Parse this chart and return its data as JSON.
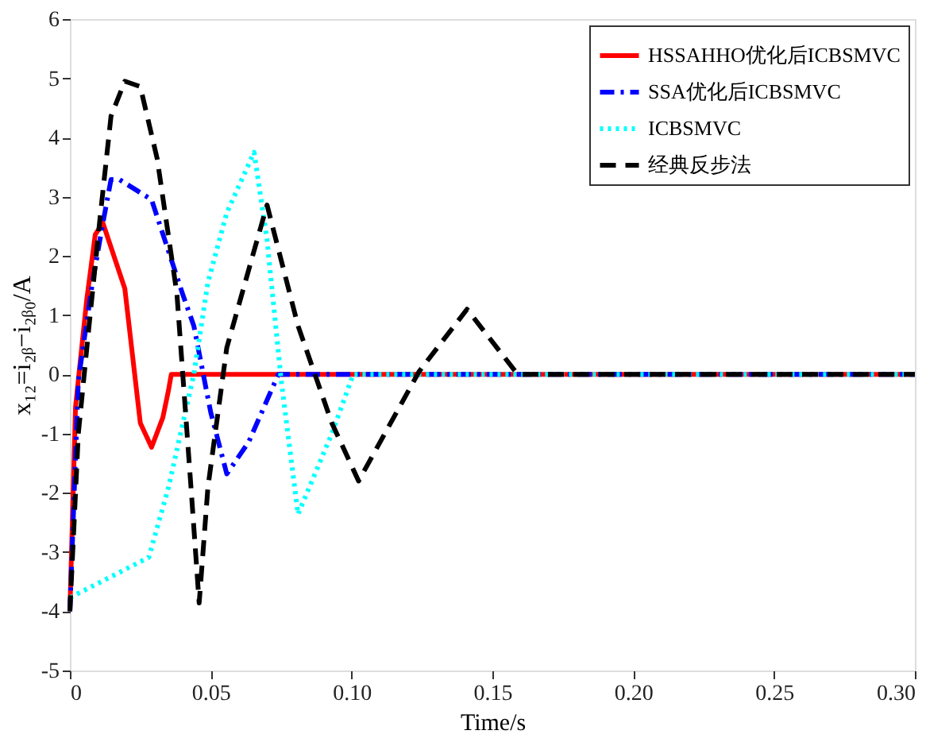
{
  "chart_data": {
    "type": "line",
    "xlabel": "Time/s",
    "ylabel": "x₁₂=i₂ᵦ−i₂ᵦ₀/A",
    "xlim": [
      0,
      0.3
    ],
    "ylim": [
      -5,
      6
    ],
    "xticks": [
      0,
      {
        "value": 0.05,
        "label": "0.05"
      },
      {
        "value": 0.1,
        "label": "0.10"
      },
      {
        "value": 0.15,
        "label": "0.15"
      },
      {
        "value": 0.2,
        "label": "0.20"
      },
      {
        "value": 0.25,
        "label": "0.25"
      },
      {
        "value": 0.3,
        "label": "0.30"
      }
    ],
    "yticks": [
      -5,
      -4,
      -3,
      -2,
      -1,
      0,
      1,
      2,
      3,
      4,
      5,
      6
    ],
    "grid": false,
    "legend": "top right",
    "marker": "none",
    "series": [
      {
        "name": "HSSAHHO优化后ICBSMVC",
        "color": "#ff0000",
        "line_style": "solid",
        "x": [
          0,
          0.002,
          0.006,
          0.009,
          0.0117,
          0.0195,
          0.025,
          0.029,
          0.033,
          0.035,
          0.036,
          0.3
        ],
        "values": [
          -4,
          -0.55,
          1.27,
          2.36,
          2.56,
          1.45,
          -0.82,
          -1.23,
          -0.73,
          -0.27,
          0,
          0
        ]
      },
      {
        "name": "SSA优化后ICBSMVC",
        "color": "#0000ff",
        "line_style": "dashdot",
        "x": [
          0,
          0.003,
          0.008,
          0.0117,
          0.0146,
          0.0176,
          0.029,
          0.04,
          0.044,
          0.05,
          0.0557,
          0.0635,
          0.074,
          0.3
        ],
        "values": [
          -4,
          -0.1,
          1.55,
          2.55,
          3.29,
          3.29,
          2.95,
          1.36,
          0.82,
          -0.64,
          -1.68,
          -1.14,
          0,
          0
        ]
      },
      {
        "name": "ICBSMVC",
        "color": "#00ffff",
        "line_style": "dotted",
        "x": [
          0,
          0.028,
          0.035,
          0.044,
          0.049,
          0.0557,
          0.0654,
          0.07,
          0.075,
          0.081,
          0.093,
          0.1006,
          0.3
        ],
        "values": [
          -3.77,
          -3.09,
          -1.91,
          0,
          1.55,
          2.73,
          3.75,
          2.27,
          -0.09,
          -2.36,
          -1.0,
          0,
          0
        ]
      },
      {
        "name": "经典反步法",
        "color": "#000000",
        "line_style": "dashed",
        "x": [
          0,
          0.003,
          0.0068,
          0.0107,
          0.0146,
          0.0195,
          0.025,
          0.031,
          0.038,
          0.043,
          0.0459,
          0.049,
          0.0557,
          0.0654,
          0.07,
          0.081,
          0.093,
          0.1025,
          0.124,
          0.141,
          0.159,
          0.3
        ],
        "values": [
          -4,
          -1,
          0.82,
          2.64,
          4.36,
          4.95,
          4.86,
          3.64,
          1.36,
          -1.91,
          -3.86,
          -1.91,
          0.45,
          2.09,
          2.86,
          0.82,
          -0.82,
          -1.8,
          0.05,
          1.1,
          0,
          0
        ]
      }
    ]
  }
}
